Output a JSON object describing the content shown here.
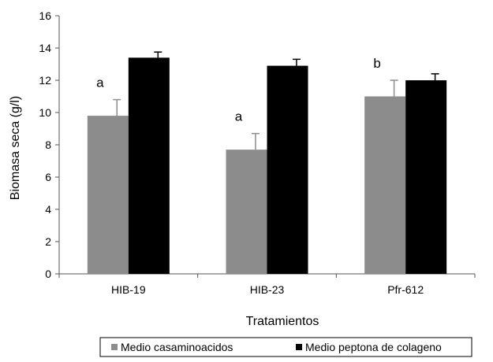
{
  "chart_data": {
    "type": "bar",
    "title": "",
    "xlabel": "Tratamientos",
    "ylabel": "Biomasa seca (g/l)",
    "ylim": [
      0,
      16
    ],
    "yticks": [
      0,
      2,
      4,
      6,
      8,
      10,
      12,
      14,
      16
    ],
    "grid": false,
    "legend_position": "bottom",
    "categories": [
      "HIB-19",
      "HIB-23",
      "Pfr-612"
    ],
    "series": [
      {
        "name": "Medio casaminoacidos",
        "color": "#8c8c8c",
        "values": [
          9.8,
          7.7,
          11.0
        ],
        "errors": [
          1.0,
          1.0,
          1.0
        ],
        "annotations": [
          "a",
          "a",
          "b"
        ]
      },
      {
        "name": "Medio peptona de colageno",
        "color": "#000000",
        "values": [
          13.4,
          12.9,
          12.0
        ],
        "errors": [
          0.35,
          0.4,
          0.4
        ]
      }
    ]
  }
}
